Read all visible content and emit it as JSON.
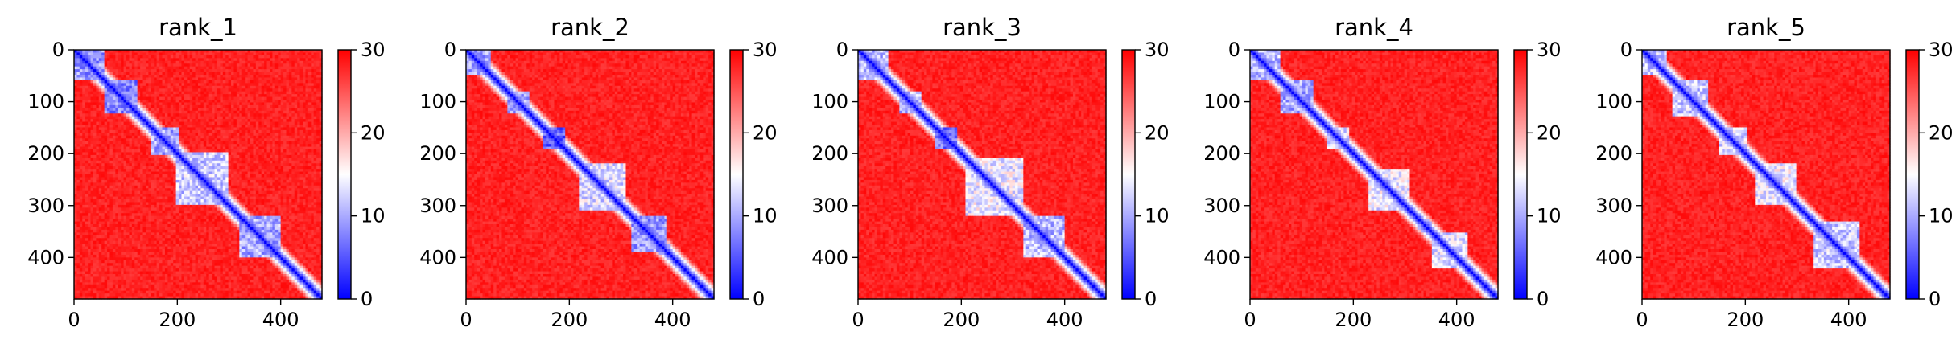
{
  "chart_data": [
    {
      "type": "heatmap",
      "title": "rank_1",
      "x_range": [
        0,
        480
      ],
      "y_range": [
        0,
        480
      ],
      "y_inverted": true,
      "x_ticks": [
        "0",
        "200",
        "400"
      ],
      "y_ticks": [
        "0",
        "100",
        "200",
        "300",
        "400"
      ],
      "colorbar": {
        "min": 0,
        "max": 30,
        "ticks": [
          "0",
          "10",
          "20",
          "30"
        ],
        "colormap": "bwr"
      },
      "background_value": 28,
      "diagonal_value": 0,
      "domains": [
        {
          "start": 0,
          "end": 60,
          "value": 9
        },
        {
          "start": 60,
          "end": 120,
          "value": 8
        },
        {
          "start": 150,
          "end": 200,
          "value": 10
        },
        {
          "start": 195,
          "end": 300,
          "value": 12
        },
        {
          "start": 320,
          "end": 400,
          "value": 10
        }
      ],
      "contacts": [
        {
          "x": 20,
          "y": 20,
          "value": 1
        },
        {
          "x": 75,
          "y": 75,
          "value": 2
        },
        {
          "x": 95,
          "y": 95,
          "value": 2
        },
        {
          "x": 175,
          "y": 175,
          "value": 2
        },
        {
          "x": 230,
          "y": 230,
          "value": 3
        },
        {
          "x": 255,
          "y": 255,
          "value": 2
        },
        {
          "x": 280,
          "y": 280,
          "value": 3
        },
        {
          "x": 340,
          "y": 340,
          "value": 3
        },
        {
          "x": 385,
          "y": 385,
          "value": 2
        }
      ]
    },
    {
      "type": "heatmap",
      "title": "rank_2",
      "x_range": [
        0,
        480
      ],
      "y_range": [
        0,
        480
      ],
      "y_inverted": true,
      "x_ticks": [
        "0",
        "200",
        "400"
      ],
      "y_ticks": [
        "0",
        "100",
        "200",
        "300",
        "400"
      ],
      "colorbar": {
        "min": 0,
        "max": 30,
        "ticks": [
          "0",
          "10",
          "20",
          "30"
        ],
        "colormap": "bwr"
      },
      "background_value": 28,
      "diagonal_value": 0,
      "domains": [
        {
          "start": 0,
          "end": 50,
          "value": 10
        },
        {
          "start": 80,
          "end": 120,
          "value": 10
        },
        {
          "start": 150,
          "end": 190,
          "value": 6
        },
        {
          "start": 220,
          "end": 310,
          "value": 13
        },
        {
          "start": 320,
          "end": 390,
          "value": 9
        }
      ],
      "contacts": [
        {
          "x": 30,
          "y": 30,
          "value": 1
        },
        {
          "x": 100,
          "y": 100,
          "value": 3
        },
        {
          "x": 165,
          "y": 165,
          "value": 1
        },
        {
          "x": 260,
          "y": 260,
          "value": 3
        },
        {
          "x": 345,
          "y": 345,
          "value": 2
        },
        {
          "x": 380,
          "y": 380,
          "value": 2
        }
      ]
    },
    {
      "type": "heatmap",
      "title": "rank_3",
      "x_range": [
        0,
        480
      ],
      "y_range": [
        0,
        480
      ],
      "y_inverted": true,
      "x_ticks": [
        "0",
        "200",
        "400"
      ],
      "y_ticks": [
        "0",
        "100",
        "200",
        "300",
        "400"
      ],
      "colorbar": {
        "min": 0,
        "max": 30,
        "ticks": [
          "0",
          "10",
          "20",
          "30"
        ],
        "colormap": "bwr"
      },
      "background_value": 28,
      "diagonal_value": 0,
      "domains": [
        {
          "start": 0,
          "end": 60,
          "value": 11
        },
        {
          "start": 80,
          "end": 120,
          "value": 11
        },
        {
          "start": 150,
          "end": 190,
          "value": 7
        },
        {
          "start": 210,
          "end": 320,
          "value": 14
        },
        {
          "start": 320,
          "end": 400,
          "value": 11
        }
      ],
      "contacts": [
        {
          "x": 30,
          "y": 30,
          "value": 1
        },
        {
          "x": 100,
          "y": 100,
          "value": 3
        },
        {
          "x": 165,
          "y": 165,
          "value": 1
        },
        {
          "x": 255,
          "y": 255,
          "value": 3
        },
        {
          "x": 330,
          "y": 330,
          "value": 3
        },
        {
          "x": 360,
          "y": 360,
          "value": 2
        }
      ]
    },
    {
      "type": "heatmap",
      "title": "rank_4",
      "x_range": [
        0,
        480
      ],
      "y_range": [
        0,
        480
      ],
      "y_inverted": true,
      "x_ticks": [
        "0",
        "200",
        "400"
      ],
      "y_ticks": [
        "0",
        "100",
        "200",
        "300",
        "400"
      ],
      "colorbar": {
        "min": 0,
        "max": 30,
        "ticks": [
          "0",
          "10",
          "20",
          "30"
        ],
        "colormap": "bwr"
      },
      "background_value": 28,
      "diagonal_value": 0,
      "domains": [
        {
          "start": 0,
          "end": 60,
          "value": 11
        },
        {
          "start": 60,
          "end": 120,
          "value": 10
        },
        {
          "start": 150,
          "end": 190,
          "value": 13
        },
        {
          "start": 230,
          "end": 310,
          "value": 14
        },
        {
          "start": 350,
          "end": 420,
          "value": 13
        }
      ],
      "contacts": [
        {
          "x": 25,
          "y": 25,
          "value": 2
        },
        {
          "x": 80,
          "y": 80,
          "value": 3
        },
        {
          "x": 100,
          "y": 100,
          "value": 3
        },
        {
          "x": 165,
          "y": 165,
          "value": 4
        },
        {
          "x": 260,
          "y": 260,
          "value": 3
        },
        {
          "x": 340,
          "y": 340,
          "value": 3
        },
        {
          "x": 390,
          "y": 390,
          "value": 4
        }
      ]
    },
    {
      "type": "heatmap",
      "title": "rank_5",
      "x_range": [
        0,
        480
      ],
      "y_range": [
        0,
        480
      ],
      "y_inverted": true,
      "x_ticks": [
        "0",
        "200",
        "400"
      ],
      "y_ticks": [
        "0",
        "100",
        "200",
        "300",
        "400"
      ],
      "colorbar": {
        "min": 0,
        "max": 30,
        "ticks": [
          "0",
          "10",
          "20",
          "30"
        ],
        "colormap": "bwr"
      },
      "background_value": 28,
      "diagonal_value": 0,
      "domains": [
        {
          "start": 0,
          "end": 50,
          "value": 12
        },
        {
          "start": 60,
          "end": 130,
          "value": 12
        },
        {
          "start": 150,
          "end": 200,
          "value": 13
        },
        {
          "start": 220,
          "end": 300,
          "value": 14
        },
        {
          "start": 330,
          "end": 420,
          "value": 12
        }
      ],
      "contacts": [
        {
          "x": 20,
          "y": 20,
          "value": 2
        },
        {
          "x": 100,
          "y": 100,
          "value": 3
        },
        {
          "x": 165,
          "y": 165,
          "value": 3
        },
        {
          "x": 255,
          "y": 255,
          "value": 3
        },
        {
          "x": 345,
          "y": 345,
          "value": 3
        },
        {
          "x": 390,
          "y": 390,
          "value": 3
        }
      ]
    }
  ]
}
